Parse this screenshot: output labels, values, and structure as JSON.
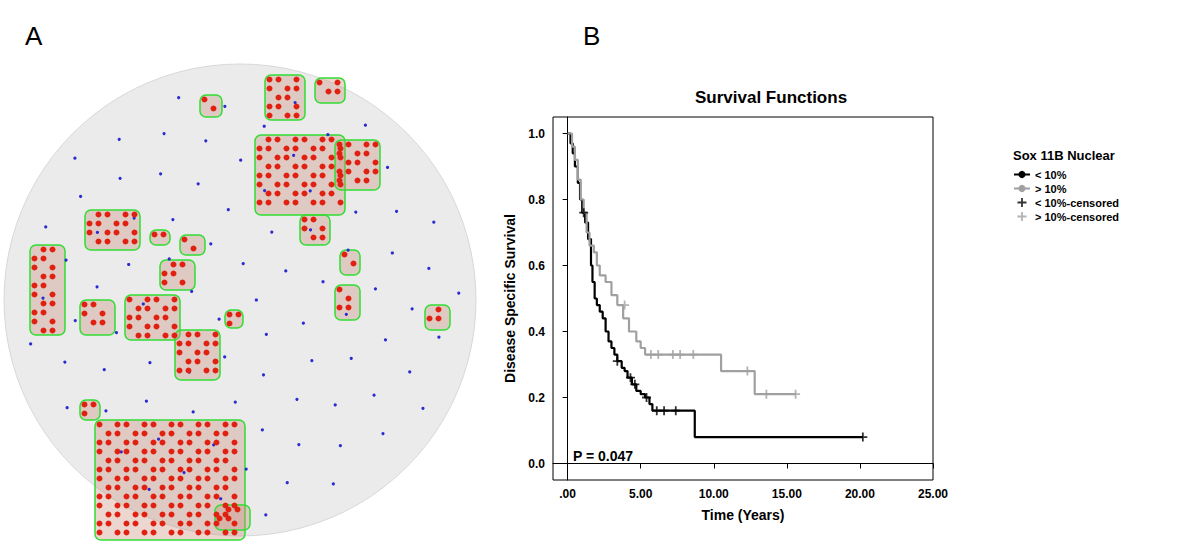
{
  "panel_labels": [
    "A",
    "B"
  ],
  "chart_data": {
    "type": "line",
    "title": "Survival Functions",
    "x_label": "Time (Years)",
    "y_label": "Disease Specific Survival",
    "legend_title": "Sox 11B Nuclear",
    "annotations": [
      "P = 0.047"
    ],
    "legend": "right",
    "grid": false,
    "xlim": [
      -1,
      25
    ],
    "xticks": [
      {
        "value": 0,
        "label": ".00"
      },
      {
        "value": 5,
        "label": "5.00"
      },
      {
        "value": 10,
        "label": "10.00"
      },
      {
        "value": 15,
        "label": "15.00"
      },
      {
        "value": 20,
        "label": "20.00"
      },
      {
        "value": 25,
        "label": "25.00"
      }
    ],
    "ylim": [
      -0.05,
      1.05
    ],
    "yticks": [
      {
        "value": 0,
        "label": "0.0"
      },
      {
        "value": 0.2,
        "label": "0.2"
      },
      {
        "value": 0.4,
        "label": "0.4"
      },
      {
        "value": 0.6,
        "label": "0.6"
      },
      {
        "value": 0.8,
        "label": "0.8"
      },
      {
        "value": 1,
        "label": "1.0"
      }
    ],
    "series": [
      {
        "name": "< 10%",
        "type": "line",
        "line_style": "step",
        "color": "#000000",
        "x": [
          0,
          0.2,
          0.35,
          0.5,
          0.7,
          0.85,
          1.0,
          1.2,
          1.4,
          1.6,
          1.7,
          1.85,
          2.0,
          2.2,
          2.4,
          2.6,
          2.8,
          3.0,
          3.2,
          3.4,
          3.7,
          3.9,
          4.1,
          4.4,
          4.7,
          5.0,
          5.3,
          5.6,
          5.8,
          8.7,
          20.2
        ],
        "values": [
          1.0,
          0.97,
          0.94,
          0.9,
          0.85,
          0.8,
          0.76,
          0.73,
          0.68,
          0.6,
          0.55,
          0.5,
          0.48,
          0.46,
          0.44,
          0.4,
          0.37,
          0.35,
          0.33,
          0.31,
          0.29,
          0.28,
          0.26,
          0.24,
          0.22,
          0.21,
          0.2,
          0.18,
          0.16,
          0.08,
          0.08
        ]
      },
      {
        "name": "> 10%",
        "type": "line",
        "line_style": "step",
        "color": "#a0a0a0",
        "x": [
          0,
          0.3,
          0.5,
          0.7,
          0.9,
          1.1,
          1.3,
          1.5,
          1.8,
          2.0,
          2.2,
          2.6,
          3.0,
          3.4,
          3.8,
          4.2,
          4.7,
          5.0,
          5.3,
          10.5,
          12.8,
          15.6
        ],
        "values": [
          1.0,
          0.96,
          0.92,
          0.86,
          0.8,
          0.76,
          0.7,
          0.66,
          0.64,
          0.6,
          0.57,
          0.55,
          0.51,
          0.48,
          0.44,
          0.4,
          0.37,
          0.35,
          0.33,
          0.28,
          0.21,
          0.21
        ]
      },
      {
        "name": "< 10%-censored",
        "type": "scatter",
        "marker": "plus",
        "color": "#000000",
        "x": [
          1.1,
          3.4,
          4.3,
          4.6,
          5.4,
          6.1,
          6.6,
          7.4,
          20.2
        ],
        "values": [
          0.76,
          0.31,
          0.26,
          0.24,
          0.2,
          0.16,
          0.16,
          0.16,
          0.08
        ]
      },
      {
        "name": "> 10%-censored",
        "type": "scatter",
        "marker": "plus",
        "color": "#a0a0a0",
        "x": [
          3.9,
          5.7,
          6.2,
          7.2,
          7.7,
          8.6,
          12.3,
          13.6,
          15.6
        ],
        "values": [
          0.48,
          0.33,
          0.33,
          0.33,
          0.33,
          0.33,
          0.28,
          0.21,
          0.21
        ]
      }
    ]
  }
}
